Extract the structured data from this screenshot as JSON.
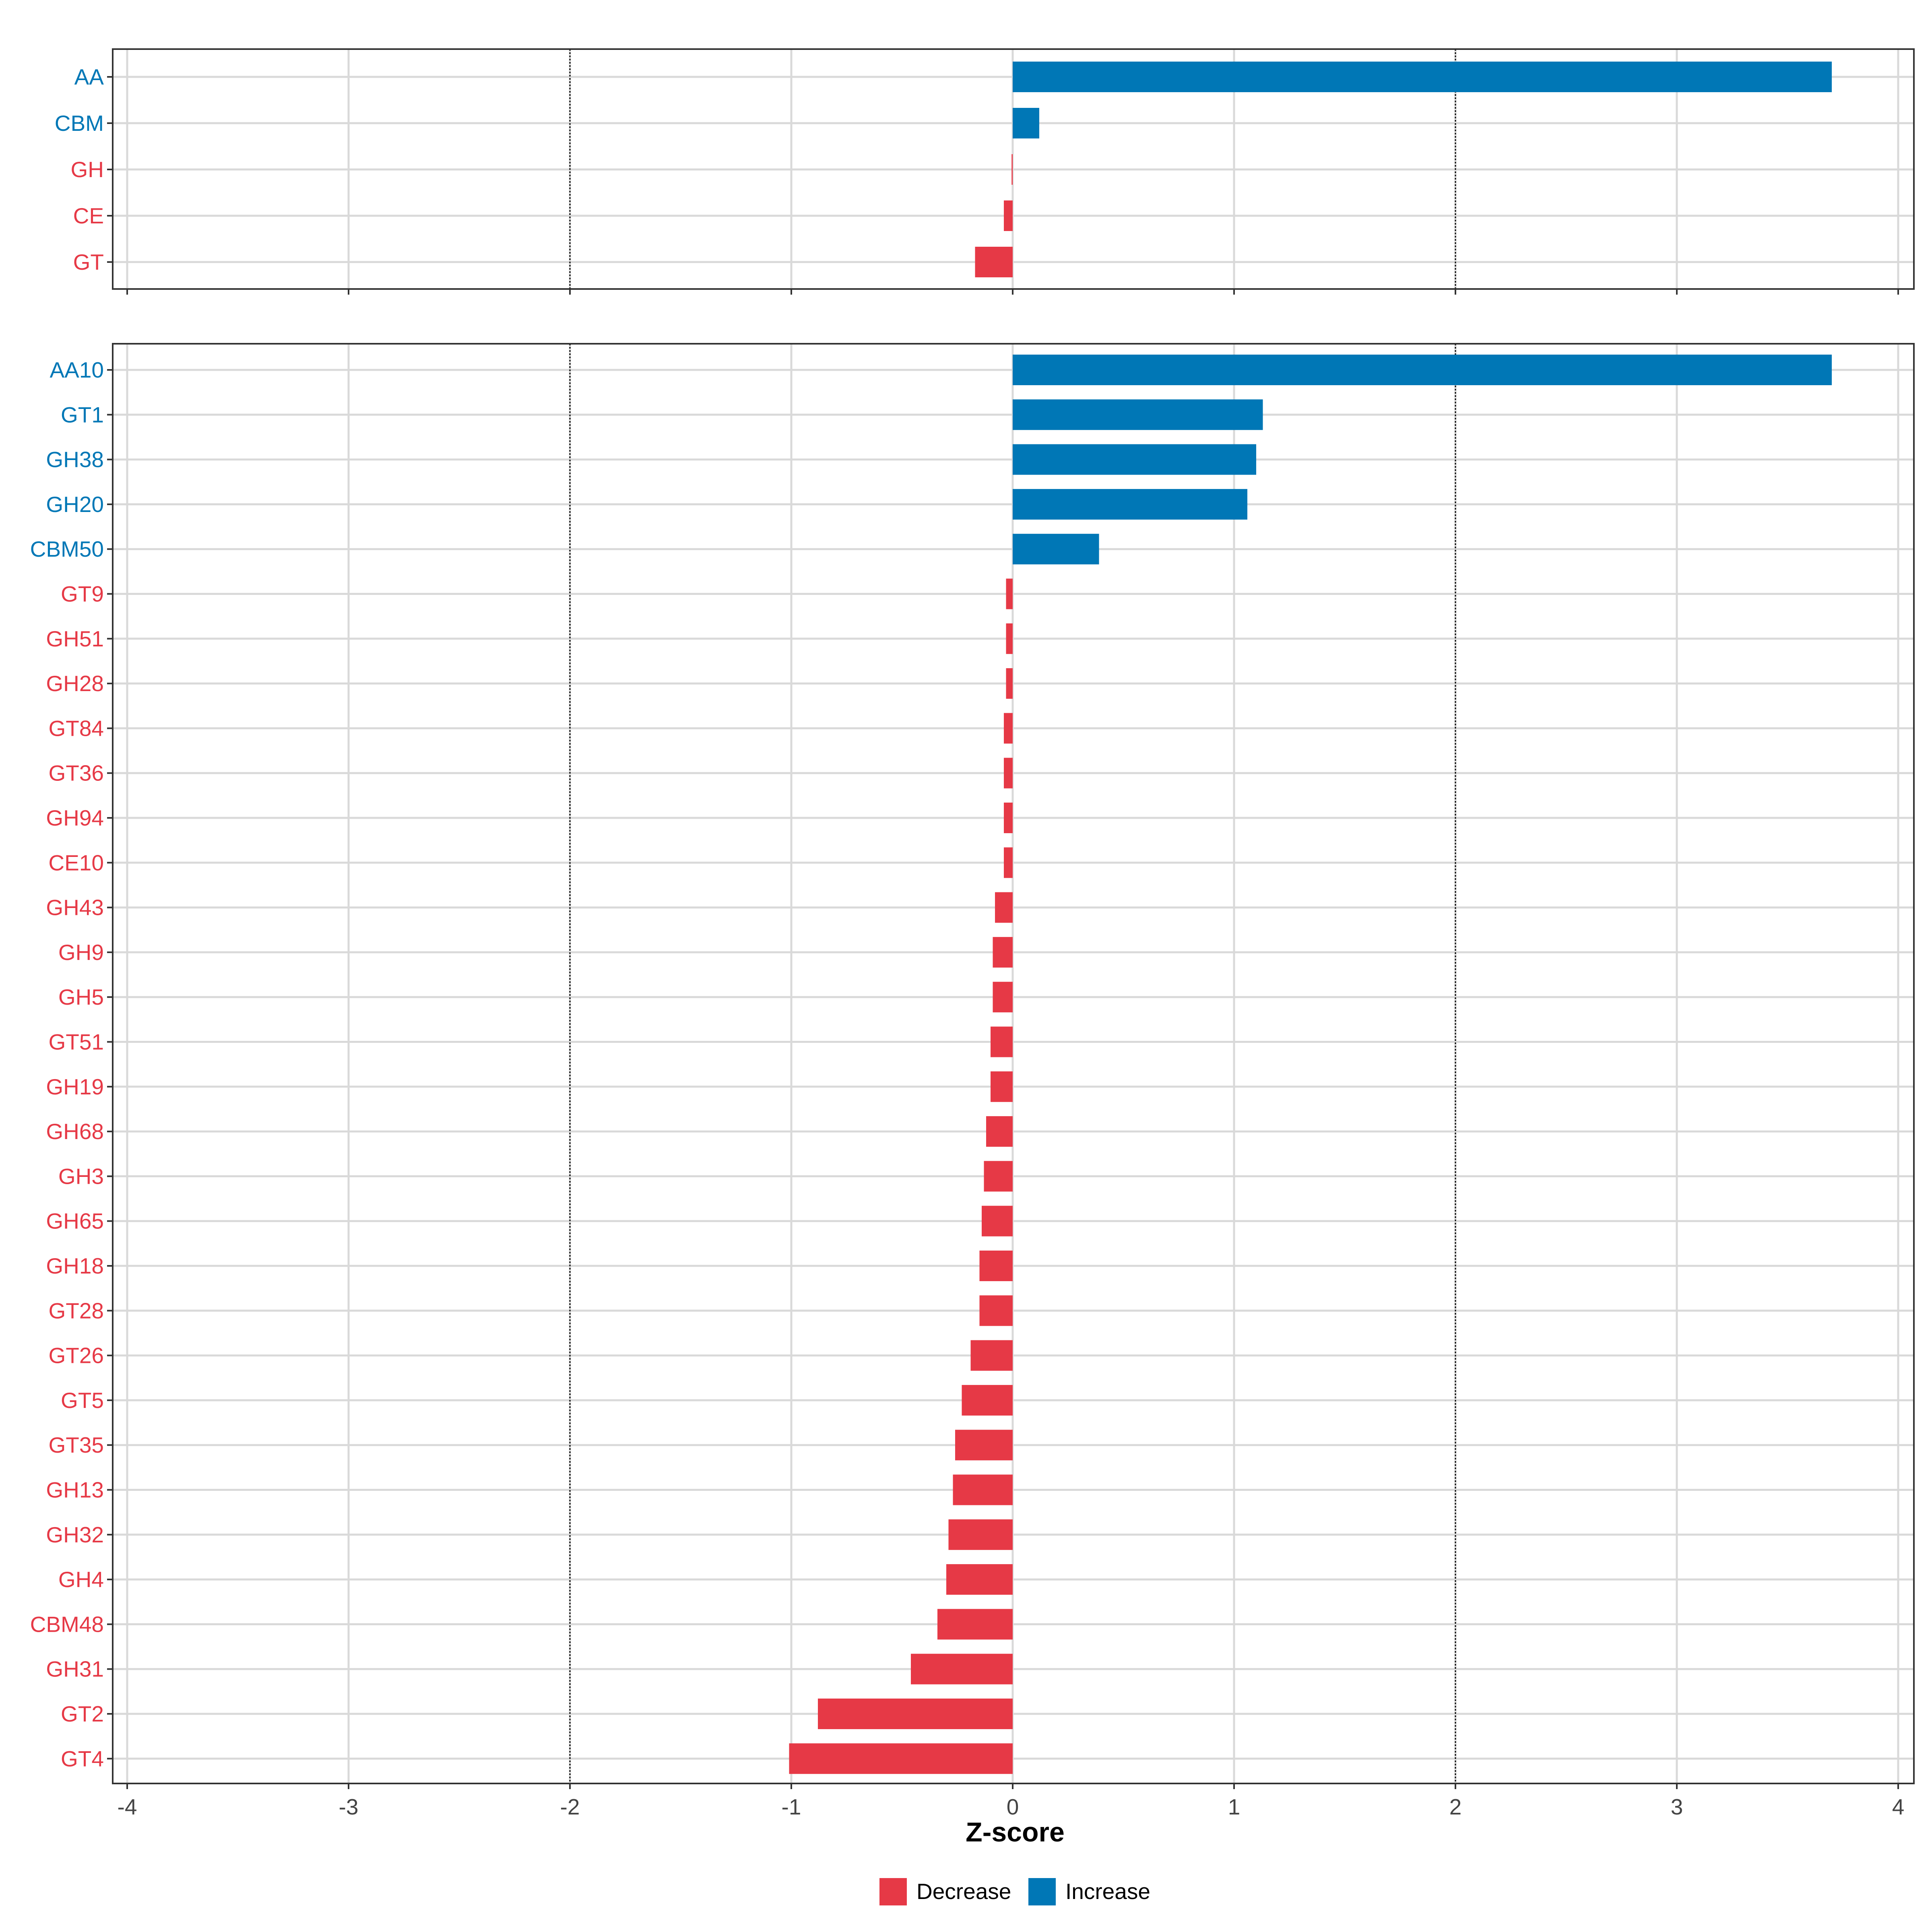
{
  "colors": {
    "decrease": "#E63946",
    "increase": "#0077B6"
  },
  "chart_data": [
    {
      "type": "bar",
      "orientation": "horizontal",
      "panel": "top",
      "xlim": [
        -4,
        4
      ],
      "categories": [
        "AA",
        "CBM",
        "GH",
        "CE",
        "GT"
      ],
      "values": [
        3.7,
        0.12,
        -0.005,
        -0.04,
        -0.17
      ],
      "directions": [
        "Increase",
        "Increase",
        "Decrease",
        "Decrease",
        "Decrease"
      ],
      "reference_lines": [
        -2,
        2
      ]
    },
    {
      "type": "bar",
      "orientation": "horizontal",
      "panel": "bottom",
      "xlim": [
        -4,
        4
      ],
      "categories": [
        "AA10",
        "GT1",
        "GH38",
        "GH20",
        "CBM50",
        "GT9",
        "GH51",
        "GH28",
        "GT84",
        "GT36",
        "GH94",
        "CE10",
        "GH43",
        "GH9",
        "GH5",
        "GT51",
        "GH19",
        "GH68",
        "GH3",
        "GH65",
        "GH18",
        "GT28",
        "GT26",
        "GT5",
        "GT35",
        "GH13",
        "GH32",
        "GH4",
        "CBM48",
        "GH31",
        "GT2",
        "GT4"
      ],
      "values": [
        3.7,
        1.13,
        1.1,
        1.06,
        0.39,
        -0.03,
        -0.03,
        -0.03,
        -0.04,
        -0.04,
        -0.04,
        -0.04,
        -0.08,
        -0.09,
        -0.09,
        -0.1,
        -0.1,
        -0.12,
        -0.13,
        -0.14,
        -0.15,
        -0.15,
        -0.19,
        -0.23,
        -0.26,
        -0.27,
        -0.29,
        -0.3,
        -0.34,
        -0.46,
        -0.88,
        -1.01
      ],
      "directions": [
        "Increase",
        "Increase",
        "Increase",
        "Increase",
        "Increase",
        "Decrease",
        "Decrease",
        "Decrease",
        "Decrease",
        "Decrease",
        "Decrease",
        "Decrease",
        "Decrease",
        "Decrease",
        "Decrease",
        "Decrease",
        "Decrease",
        "Decrease",
        "Decrease",
        "Decrease",
        "Decrease",
        "Decrease",
        "Decrease",
        "Decrease",
        "Decrease",
        "Decrease",
        "Decrease",
        "Decrease",
        "Decrease",
        "Decrease",
        "Decrease",
        "Decrease"
      ],
      "reference_lines": [
        -2,
        2
      ]
    }
  ],
  "x_ticks": [
    "-4",
    "-3",
    "-2",
    "-1",
    "0",
    "1",
    "2",
    "3",
    "4"
  ],
  "xlabel": "Z-score",
  "legend": {
    "position": "bottom",
    "items": [
      "Decrease",
      "Increase"
    ]
  }
}
